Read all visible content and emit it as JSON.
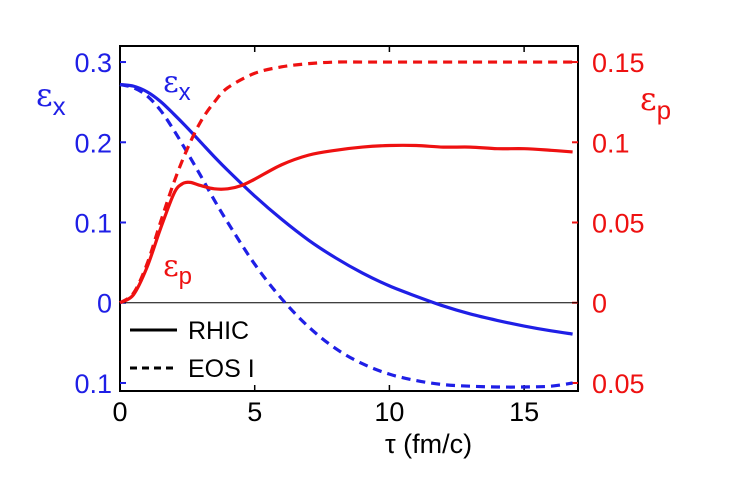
{
  "chart_data": {
    "type": "line",
    "xlabel": "τ (fm/c)",
    "xlim": [
      0,
      17
    ],
    "x_ticks": [
      "0",
      "5",
      "10",
      "15"
    ],
    "left_axis": {
      "label_main": "ε",
      "label_sub": "x",
      "color": "#1f1fe6",
      "ylim": [
        -0.11,
        0.32
      ],
      "ticks": [
        {
          "value": 0.3,
          "label": "0.3"
        },
        {
          "value": 0.2,
          "label": "0.2"
        },
        {
          "value": 0.1,
          "label": "0.1"
        },
        {
          "value": 0.0,
          "label": "0"
        },
        {
          "value": -0.1,
          "label": "0.1"
        }
      ]
    },
    "right_axis": {
      "label_main": "ε",
      "label_sub": "p",
      "color": "#ee1111",
      "ylim": [
        -0.055,
        0.16
      ],
      "ticks": [
        {
          "value": 0.15,
          "label": "0.15"
        },
        {
          "value": 0.1,
          "label": "0.1"
        },
        {
          "value": 0.05,
          "label": "0.05"
        },
        {
          "value": 0.0,
          "label": "0"
        },
        {
          "value": -0.05,
          "label": "0.05"
        }
      ]
    },
    "zero_line": true,
    "legend": {
      "placement": "bottom-left",
      "entries": [
        {
          "label": "RHIC",
          "style": "solid"
        },
        {
          "label": "EOS I",
          "style": "dashed"
        }
      ]
    },
    "annotations": [
      {
        "main": "ε",
        "sub": "x",
        "color": "#1f1fe6",
        "x": 1.6,
        "y": 0.245,
        "axis": "left"
      },
      {
        "main": "ε",
        "sub": "p",
        "color": "#ee1111",
        "x": 1.6,
        "y": 0.013,
        "axis": "right"
      }
    ],
    "series": [
      {
        "axis": "left",
        "color": "#1f1fe6",
        "style": "solid",
        "x": [
          0,
          0.5,
          1,
          1.5,
          2,
          2.5,
          3,
          3.5,
          4,
          5,
          6,
          7,
          8,
          9,
          10,
          11,
          12,
          13,
          14,
          15,
          16,
          16.8
        ],
        "y": [
          0.272,
          0.27,
          0.263,
          0.251,
          0.235,
          0.218,
          0.2,
          0.182,
          0.165,
          0.133,
          0.104,
          0.078,
          0.056,
          0.037,
          0.021,
          0.008,
          -0.004,
          -0.014,
          -0.022,
          -0.029,
          -0.035,
          -0.039
        ]
      },
      {
        "axis": "left",
        "color": "#1f1fe6",
        "style": "dashed",
        "x": [
          0,
          0.5,
          1,
          1.5,
          2,
          2.5,
          3,
          3.5,
          4,
          5,
          6,
          7,
          8,
          9,
          10,
          11,
          12,
          13,
          14,
          15,
          16,
          16.8
        ],
        "y": [
          0.272,
          0.268,
          0.258,
          0.24,
          0.215,
          0.187,
          0.158,
          0.128,
          0.1,
          0.048,
          0.005,
          -0.03,
          -0.057,
          -0.076,
          -0.089,
          -0.097,
          -0.102,
          -0.104,
          -0.105,
          -0.105,
          -0.104,
          -0.1
        ]
      },
      {
        "axis": "right",
        "color": "#ee1111",
        "style": "solid",
        "x": [
          0,
          0.5,
          1,
          1.5,
          2,
          2.3,
          2.6,
          3,
          3.5,
          4,
          4.5,
          5,
          6,
          7,
          8,
          9,
          10,
          11,
          12,
          13,
          14,
          15,
          16,
          16.8
        ],
        "y": [
          0,
          0.005,
          0.022,
          0.046,
          0.068,
          0.074,
          0.075,
          0.073,
          0.071,
          0.071,
          0.073,
          0.077,
          0.086,
          0.092,
          0.095,
          0.097,
          0.098,
          0.098,
          0.097,
          0.097,
          0.096,
          0.096,
          0.095,
          0.094
        ]
      },
      {
        "axis": "right",
        "color": "#ee1111",
        "style": "dashed",
        "x": [
          0,
          0.5,
          1,
          1.5,
          2,
          2.5,
          3,
          3.5,
          4,
          5,
          6,
          7,
          8,
          9,
          10,
          12,
          14,
          16.8
        ],
        "y": [
          0,
          0.006,
          0.024,
          0.05,
          0.075,
          0.096,
          0.113,
          0.125,
          0.134,
          0.143,
          0.147,
          0.149,
          0.15,
          0.15,
          0.15,
          0.15,
          0.15,
          0.15
        ]
      }
    ]
  }
}
